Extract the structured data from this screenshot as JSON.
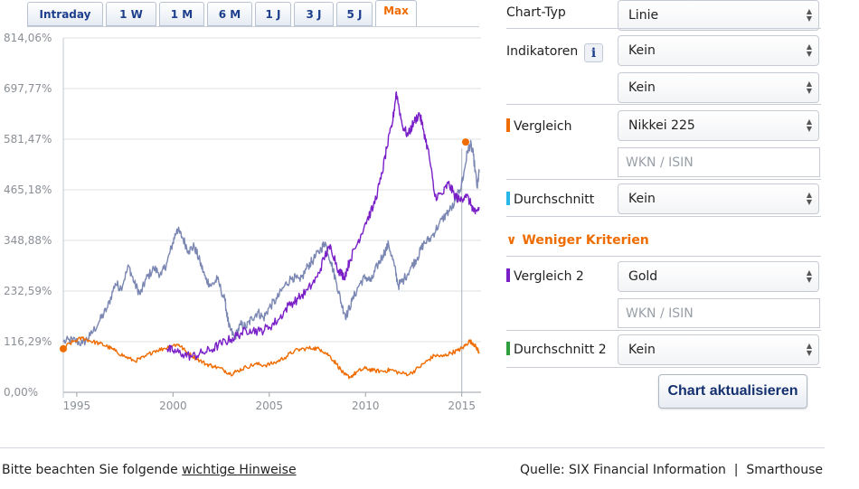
{
  "tabs": [
    {
      "label": "Intraday",
      "active": false
    },
    {
      "label": "1 W",
      "active": false
    },
    {
      "label": "1 M",
      "active": false
    },
    {
      "label": "6 M",
      "active": false
    },
    {
      "label": "1 J",
      "active": false
    },
    {
      "label": "3 J",
      "active": false
    },
    {
      "label": "5 J",
      "active": false
    },
    {
      "label": "Max",
      "active": true
    }
  ],
  "form": {
    "chart_type": {
      "label": "Chart-Typ",
      "value": "Linie"
    },
    "indicators": {
      "label": "Indikatoren",
      "value1": "Kein",
      "value2": "Kein"
    },
    "info_icon": "i",
    "comparison": {
      "label": "Vergleich",
      "value": "Nikkei 225",
      "color": "#ef6c00",
      "placeholder": "WKN / ISIN"
    },
    "average": {
      "label": "Durchschnitt",
      "value": "Kein",
      "color": "#29b6e8"
    },
    "less_criteria": "Weniger Kriterien",
    "comparison2": {
      "label": "Vergleich 2",
      "value": "Gold",
      "color": "#7a1fc7",
      "placeholder": "WKN / ISIN"
    },
    "average2": {
      "label": "Durchschnitt 2",
      "value": "Kein",
      "color": "#2e9e3e"
    },
    "update_button": "Chart aktualisieren"
  },
  "footer": {
    "notice_prefix": "Bitte beachten Sie folgende",
    "notice_link": "wichtige Hinweise",
    "source": "Quelle: SIX Financial Information  |  Smarthouse"
  },
  "chart_data": {
    "type": "line",
    "y_ticks": [
      "814,06%",
      "697,77%",
      "581,47%",
      "465,18%",
      "348,88%",
      "232,59%",
      "116,29%",
      "0,00%"
    ],
    "ylim": [
      0,
      814.06
    ],
    "x_ticks": [
      "1995",
      "2000",
      "2005",
      "2010",
      "2015"
    ],
    "xlim": [
      1994.3,
      2016.0
    ],
    "grid": true,
    "series": [
      {
        "color": "#7b87b3",
        "values": [
          [
            1994.3,
            116
          ],
          [
            1994.8,
            120
          ],
          [
            1995.3,
            112
          ],
          [
            1995.7,
            130
          ],
          [
            1996.2,
            165
          ],
          [
            1996.6,
            195
          ],
          [
            1997.0,
            250
          ],
          [
            1997.3,
            240
          ],
          [
            1997.7,
            290
          ],
          [
            1998.0,
            250
          ],
          [
            1998.3,
            225
          ],
          [
            1998.6,
            260
          ],
          [
            1999.0,
            285
          ],
          [
            1999.4,
            270
          ],
          [
            1999.7,
            300
          ],
          [
            2000.0,
            345
          ],
          [
            2000.2,
            375
          ],
          [
            2000.5,
            355
          ],
          [
            2000.8,
            325
          ],
          [
            2001.1,
            335
          ],
          [
            2001.4,
            300
          ],
          [
            2001.7,
            260
          ],
          [
            2002.0,
            245
          ],
          [
            2002.3,
            260
          ],
          [
            2002.7,
            210
          ],
          [
            2002.9,
            150
          ],
          [
            2003.2,
            125
          ],
          [
            2003.5,
            155
          ],
          [
            2003.8,
            150
          ],
          [
            2004.1,
            170
          ],
          [
            2004.4,
            185
          ],
          [
            2004.7,
            170
          ],
          [
            2005.0,
            195
          ],
          [
            2005.4,
            215
          ],
          [
            2005.8,
            245
          ],
          [
            2006.2,
            265
          ],
          [
            2006.6,
            255
          ],
          [
            2007.0,
            290
          ],
          [
            2007.3,
            305
          ],
          [
            2007.7,
            330
          ],
          [
            2007.9,
            345
          ],
          [
            2008.2,
            300
          ],
          [
            2008.5,
            250
          ],
          [
            2008.8,
            195
          ],
          [
            2009.0,
            175
          ],
          [
            2009.3,
            210
          ],
          [
            2009.7,
            250
          ],
          [
            2010.0,
            265
          ],
          [
            2010.3,
            255
          ],
          [
            2010.6,
            290
          ],
          [
            2010.9,
            315
          ],
          [
            2011.2,
            340
          ],
          [
            2011.5,
            290
          ],
          [
            2011.7,
            245
          ],
          [
            2012.0,
            260
          ],
          [
            2012.4,
            290
          ],
          [
            2012.7,
            310
          ],
          [
            2013.0,
            340
          ],
          [
            2013.4,
            355
          ],
          [
            2013.8,
            385
          ],
          [
            2014.2,
            410
          ],
          [
            2014.6,
            430
          ],
          [
            2014.9,
            465
          ],
          [
            2015.1,
            500
          ],
          [
            2015.3,
            555
          ],
          [
            2015.45,
            570
          ],
          [
            2015.6,
            545
          ],
          [
            2015.8,
            470
          ],
          [
            2015.9,
            505
          ]
        ]
      },
      {
        "color": "#ef6c00",
        "values": [
          [
            1994.3,
            102
          ],
          [
            1994.8,
            116
          ],
          [
            1995.3,
            125
          ],
          [
            1995.7,
            118
          ],
          [
            1996.2,
            112
          ],
          [
            1996.6,
            105
          ],
          [
            1997.0,
            95
          ],
          [
            1997.5,
            82
          ],
          [
            1998.0,
            72
          ],
          [
            1998.5,
            80
          ],
          [
            1999.0,
            95
          ],
          [
            1999.5,
            100
          ],
          [
            2000.0,
            108
          ],
          [
            2000.3,
            110
          ],
          [
            2000.7,
            92
          ],
          [
            2001.2,
            78
          ],
          [
            2001.7,
            65
          ],
          [
            2002.1,
            60
          ],
          [
            2002.6,
            52
          ],
          [
            2003.0,
            42
          ],
          [
            2003.3,
            48
          ],
          [
            2003.8,
            58
          ],
          [
            2004.3,
            65
          ],
          [
            2004.8,
            62
          ],
          [
            2005.3,
            68
          ],
          [
            2005.8,
            80
          ],
          [
            2006.3,
            95
          ],
          [
            2006.8,
            100
          ],
          [
            2007.3,
            102
          ],
          [
            2007.7,
            98
          ],
          [
            2008.1,
            85
          ],
          [
            2008.5,
            65
          ],
          [
            2008.9,
            40
          ],
          [
            2009.2,
            35
          ],
          [
            2009.6,
            48
          ],
          [
            2010.0,
            55
          ],
          [
            2010.4,
            50
          ],
          [
            2010.9,
            48
          ],
          [
            2011.3,
            52
          ],
          [
            2011.8,
            44
          ],
          [
            2012.3,
            42
          ],
          [
            2012.8,
            58
          ],
          [
            2013.2,
            72
          ],
          [
            2013.6,
            85
          ],
          [
            2014.0,
            82
          ],
          [
            2014.4,
            90
          ],
          [
            2014.8,
            96
          ],
          [
            2015.1,
            104
          ],
          [
            2015.4,
            118
          ],
          [
            2015.6,
            112
          ],
          [
            2015.8,
            100
          ],
          [
            2015.9,
            92
          ]
        ]
      },
      {
        "color": "#7a1fc7",
        "values": [
          [
            1999.7,
            100
          ],
          [
            2000.0,
            95
          ],
          [
            2000.5,
            88
          ],
          [
            2001.0,
            82
          ],
          [
            2001.5,
            90
          ],
          [
            2002.0,
            98
          ],
          [
            2002.5,
            112
          ],
          [
            2003.0,
            122
          ],
          [
            2003.5,
            135
          ],
          [
            2004.0,
            145
          ],
          [
            2004.5,
            140
          ],
          [
            2005.0,
            150
          ],
          [
            2005.5,
            168
          ],
          [
            2006.0,
            200
          ],
          [
            2006.5,
            215
          ],
          [
            2007.0,
            235
          ],
          [
            2007.5,
            265
          ],
          [
            2007.9,
            315
          ],
          [
            2008.2,
            335
          ],
          [
            2008.6,
            280
          ],
          [
            2008.9,
            265
          ],
          [
            2009.2,
            305
          ],
          [
            2009.6,
            345
          ],
          [
            2010.0,
            390
          ],
          [
            2010.4,
            425
          ],
          [
            2010.8,
            490
          ],
          [
            2011.1,
            560
          ],
          [
            2011.4,
            620
          ],
          [
            2011.6,
            690
          ],
          [
            2011.9,
            615
          ],
          [
            2012.2,
            590
          ],
          [
            2012.5,
            620
          ],
          [
            2012.8,
            640
          ],
          [
            2013.0,
            605
          ],
          [
            2013.3,
            545
          ],
          [
            2013.6,
            450
          ],
          [
            2014.0,
            455
          ],
          [
            2014.3,
            480
          ],
          [
            2014.6,
            455
          ],
          [
            2014.9,
            440
          ],
          [
            2015.2,
            455
          ],
          [
            2015.5,
            430
          ],
          [
            2015.7,
            410
          ],
          [
            2015.9,
            425
          ]
        ]
      }
    ],
    "markers": [
      {
        "color": "#ef6c00",
        "x": 1994.3,
        "y": 100
      },
      {
        "color": "#ef6c00",
        "x": 2015.2,
        "y": 575
      }
    ],
    "crosshair_x": 2015.0
  }
}
